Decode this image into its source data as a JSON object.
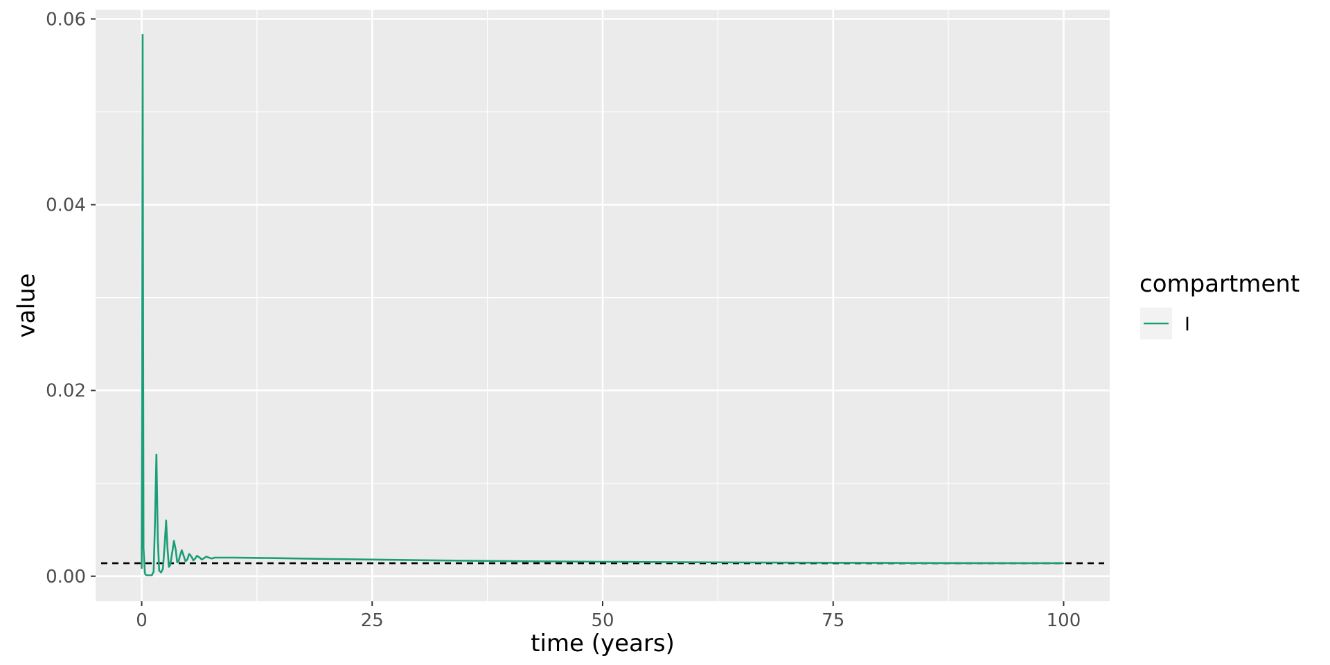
{
  "chart_data": {
    "type": "line",
    "xlabel": "time (years)",
    "ylabel": "value",
    "xlim": [
      -5,
      105
    ],
    "ylim": [
      -0.0027,
      0.061
    ],
    "x_ticks": [
      0,
      25,
      50,
      75,
      100
    ],
    "x_tick_labels": [
      "0",
      "25",
      "50",
      "75",
      "100"
    ],
    "y_ticks": [
      0,
      0.02,
      0.04,
      0.06
    ],
    "y_tick_labels": [
      "0.00",
      "0.02",
      "0.04",
      "0.06"
    ],
    "grid": true,
    "legend": {
      "title": "compartment",
      "position": "right"
    },
    "series": [
      {
        "name": "I",
        "color": "#1b9e77",
        "x": [
          0,
          0.05,
          0.1,
          0.2,
          0.35,
          0.5,
          0.8,
          1.1,
          1.3,
          1.45,
          1.6,
          1.75,
          1.9,
          2.1,
          2.3,
          2.5,
          2.65,
          2.8,
          2.95,
          3.1,
          3.3,
          3.5,
          3.7,
          3.85,
          4.0,
          4.15,
          4.35,
          4.55,
          4.75,
          4.95,
          5.15,
          5.4,
          5.6,
          5.8,
          6.0,
          6.3,
          6.5,
          6.7,
          7.0,
          7.3,
          7.6,
          7.9,
          8.2,
          8.5,
          8.8,
          9.2,
          9.6,
          10,
          12,
          15,
          20,
          25,
          30,
          40,
          50,
          60,
          70,
          80,
          90,
          100
        ],
        "y": [
          0.0008,
          0.02,
          0.0583,
          0.003,
          0.0003,
          0.0001,
          0.0001,
          0.0001,
          0.0005,
          0.006,
          0.0131,
          0.004,
          0.0006,
          0.0004,
          0.0008,
          0.0035,
          0.006,
          0.003,
          0.001,
          0.0012,
          0.0025,
          0.0038,
          0.0028,
          0.0015,
          0.0016,
          0.0022,
          0.0028,
          0.0022,
          0.0016,
          0.0018,
          0.0024,
          0.0021,
          0.0017,
          0.0019,
          0.0022,
          0.002,
          0.0018,
          0.0019,
          0.0021,
          0.002,
          0.0019,
          0.002,
          0.002,
          0.002,
          0.002,
          0.002,
          0.002,
          0.002,
          0.00198,
          0.00194,
          0.00186,
          0.00179,
          0.00172,
          0.00162,
          0.00155,
          0.0015,
          0.00146,
          0.00143,
          0.00141,
          0.0014
        ]
      }
    ],
    "reference_lines": [
      {
        "orientation": "horizontal",
        "y": 0.0014,
        "style": "dashed",
        "color": "#000000"
      }
    ]
  }
}
